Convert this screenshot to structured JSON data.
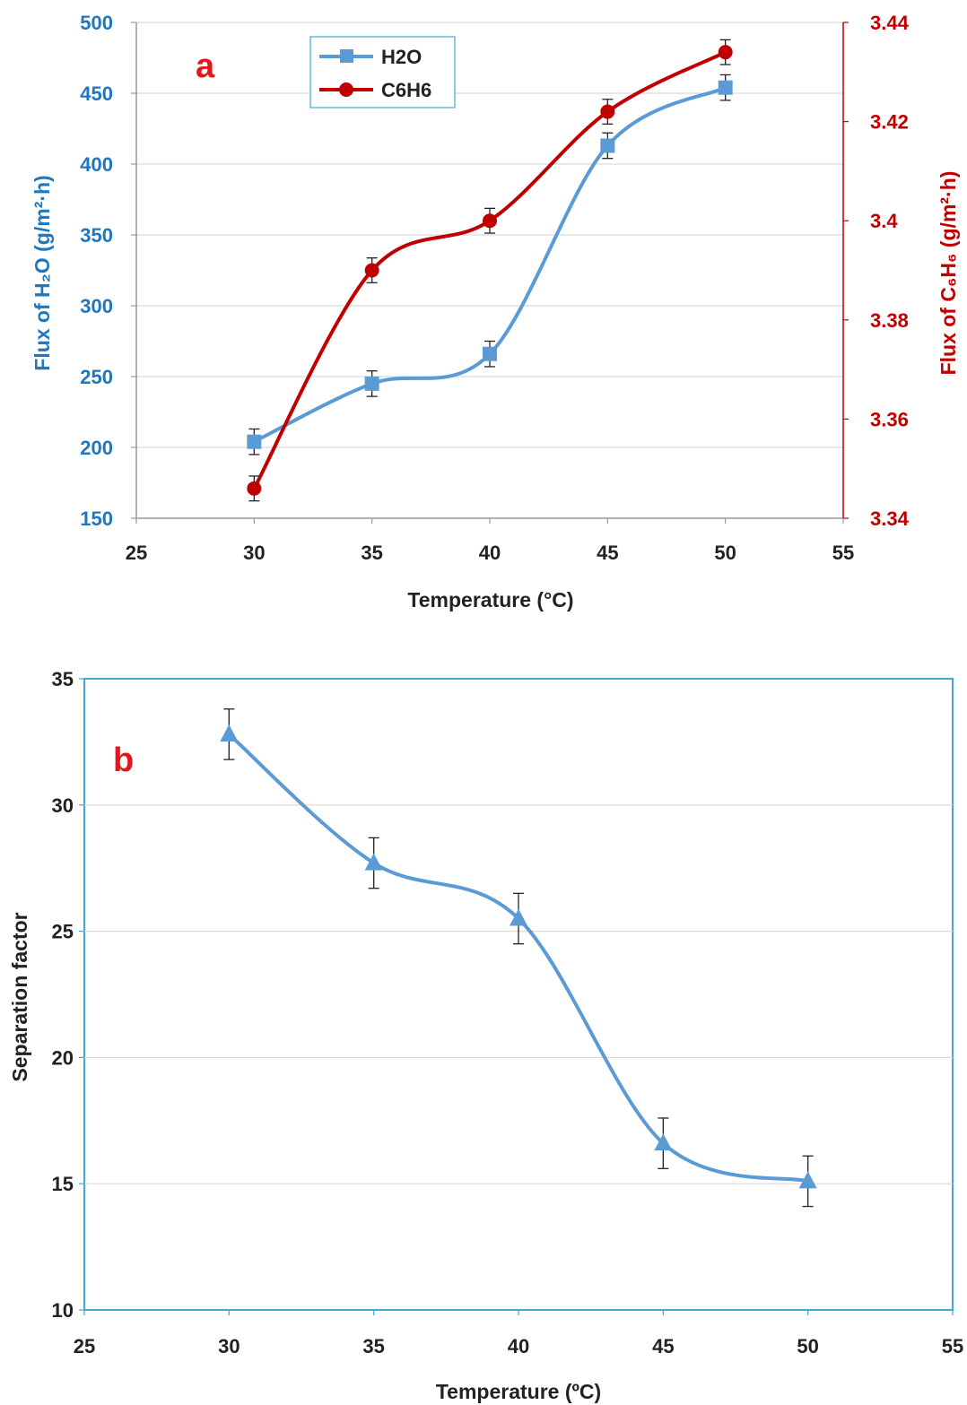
{
  "chart_data": [
    {
      "type": "line",
      "panel_label": "a",
      "xlabel": "Temperature (°C)",
      "ylabel_left": "Flux of H₂O (g/m²·h)",
      "ylabel_right": "Flux of C₆H₆ (g/m²·h)",
      "xlim": [
        25,
        55
      ],
      "xticks": [
        25,
        30,
        35,
        40,
        45,
        50,
        55
      ],
      "ylim_left": [
        150,
        500
      ],
      "yticks_left": [
        150,
        200,
        250,
        300,
        350,
        400,
        450,
        500
      ],
      "ylim_right": [
        3.34,
        3.44
      ],
      "yticks_right": [
        "3.34",
        "3.36",
        "3.38",
        "3.4",
        "3.42",
        "3.44"
      ],
      "grid": "horizontal",
      "legend_position": "top-left",
      "colors": {
        "left_axis": "#1f77c0",
        "right_axis": "#c00000"
      },
      "series": [
        {
          "name": "H2O",
          "axis": "left",
          "marker": "square",
          "color": "#5b9bd5",
          "x": [
            30,
            35,
            40,
            45,
            50
          ],
          "y": [
            204,
            245,
            266,
            413,
            454
          ],
          "error": [
            9,
            9,
            9,
            9,
            9
          ]
        },
        {
          "name": "C6H6",
          "axis": "right",
          "marker": "circle",
          "color": "#c00000",
          "x": [
            30,
            35,
            40,
            45,
            50
          ],
          "y": [
            3.346,
            3.39,
            3.4,
            3.422,
            3.434
          ],
          "error": [
            0.0025,
            0.0025,
            0.0025,
            0.0025,
            0.0025
          ]
        }
      ]
    },
    {
      "type": "line",
      "panel_label": "b",
      "xlabel": "Temperature (ºC)",
      "ylabel": "Separation factor",
      "xlim": [
        25,
        55
      ],
      "xticks": [
        25,
        30,
        35,
        40,
        45,
        50,
        55
      ],
      "ylim": [
        10,
        35
      ],
      "yticks": [
        10,
        15,
        20,
        25,
        30,
        35
      ],
      "grid": "horizontal",
      "colors": {
        "axis": "#222222",
        "frame": "#3fa9d8"
      },
      "series": [
        {
          "marker": "triangle",
          "color": "#5b9bd5",
          "x": [
            30,
            35,
            40,
            45,
            50
          ],
          "y": [
            32.8,
            27.7,
            25.5,
            16.6,
            15.1
          ],
          "error": [
            1,
            1,
            1,
            1,
            1
          ]
        }
      ]
    }
  ]
}
